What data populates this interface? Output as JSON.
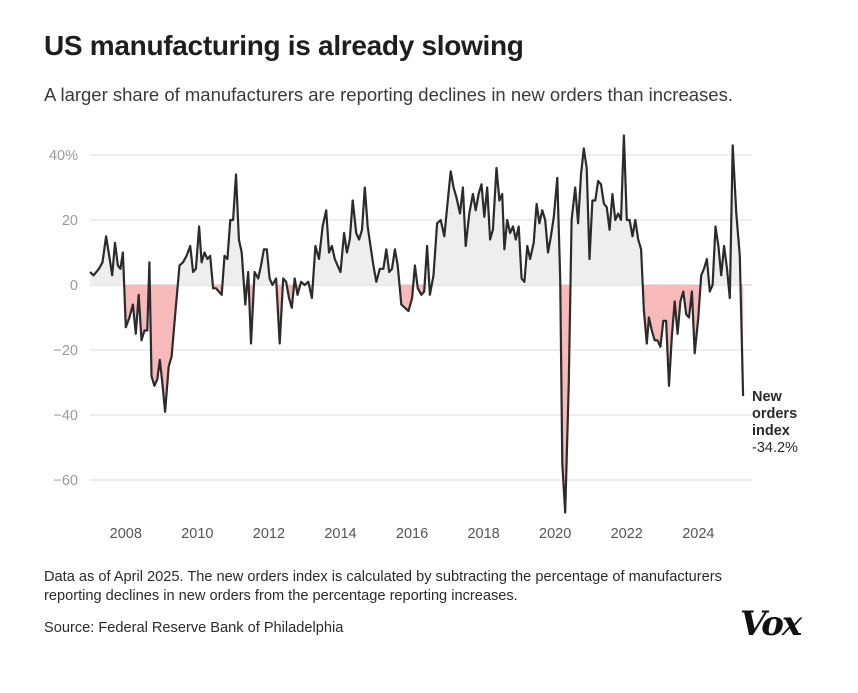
{
  "header": {
    "title": "US manufacturing is already slowing",
    "subtitle": "A larger share of manufacturers are reporting declines in new orders than increases."
  },
  "footer": {
    "note": "Data as of April 2025. The new orders index is calculated by subtracting the percentage of manufacturers reporting declines in new orders from the percentage reporting increases.",
    "source": "Source: Federal Reserve Bank of Philadelphia",
    "logo": "Vox"
  },
  "chart_data": {
    "type": "area",
    "title": "US manufacturing is already slowing",
    "subtitle": "A larger share of manufacturers are reporting declines in new orders than increases.",
    "xlabel": "",
    "ylabel": "",
    "xlim": [
      2007,
      2025.5
    ],
    "ylim": [
      -72,
      46
    ],
    "x_ticks": [
      2008,
      2010,
      2012,
      2014,
      2016,
      2018,
      2020,
      2022,
      2024
    ],
    "x_tick_labels": [
      "2008",
      "2010",
      "2012",
      "2014",
      "2016",
      "2018",
      "2020",
      "2022",
      "2024"
    ],
    "y_ticks": [
      40,
      20,
      0,
      -20,
      -40,
      -60
    ],
    "y_tick_labels": [
      "40%",
      "20",
      "0",
      "−20",
      "−40",
      "−60"
    ],
    "grid": true,
    "colors": {
      "line": "#2b2b2b",
      "positive_fill": "#eeeeee",
      "negative_fill": "#f7b9b9",
      "grid": "#dddddd"
    },
    "annotation": {
      "name_lines": [
        "New",
        "orders",
        "index"
      ],
      "value_label": "-34.2%",
      "x": 2025.25,
      "y": -34.2
    },
    "series": [
      {
        "points": [
          [
            2007.0,
            4
          ],
          [
            2007.1,
            3
          ],
          [
            2007.25,
            5
          ],
          [
            2007.35,
            7
          ],
          [
            2007.45,
            15
          ],
          [
            2007.55,
            8
          ],
          [
            2007.62,
            3
          ],
          [
            2007.7,
            13
          ],
          [
            2007.78,
            6
          ],
          [
            2007.85,
            5
          ],
          [
            2007.92,
            10
          ],
          [
            2008.0,
            -13
          ],
          [
            2008.1,
            -10
          ],
          [
            2008.2,
            -6
          ],
          [
            2008.28,
            -15
          ],
          [
            2008.36,
            -3
          ],
          [
            2008.44,
            -17
          ],
          [
            2008.52,
            -14
          ],
          [
            2008.6,
            -14
          ],
          [
            2008.66,
            7
          ],
          [
            2008.72,
            -28
          ],
          [
            2008.8,
            -31
          ],
          [
            2008.88,
            -29
          ],
          [
            2008.95,
            -23
          ],
          [
            2009.02,
            -30
          ],
          [
            2009.1,
            -39
          ],
          [
            2009.2,
            -25
          ],
          [
            2009.28,
            -22
          ],
          [
            2009.38,
            -9
          ],
          [
            2009.5,
            6
          ],
          [
            2009.6,
            7
          ],
          [
            2009.7,
            9
          ],
          [
            2009.8,
            12
          ],
          [
            2009.88,
            4
          ],
          [
            2009.96,
            5
          ],
          [
            2010.05,
            18
          ],
          [
            2010.12,
            7
          ],
          [
            2010.2,
            10
          ],
          [
            2010.28,
            8
          ],
          [
            2010.36,
            9
          ],
          [
            2010.44,
            -1
          ],
          [
            2010.52,
            -1
          ],
          [
            2010.6,
            -2
          ],
          [
            2010.68,
            -3
          ],
          [
            2010.76,
            9
          ],
          [
            2010.84,
            8
          ],
          [
            2010.92,
            20
          ],
          [
            2011.0,
            20
          ],
          [
            2011.08,
            34
          ],
          [
            2011.16,
            14
          ],
          [
            2011.24,
            10
          ],
          [
            2011.34,
            -6
          ],
          [
            2011.42,
            4
          ],
          [
            2011.5,
            -18
          ],
          [
            2011.6,
            4
          ],
          [
            2011.7,
            2
          ],
          [
            2011.78,
            6
          ],
          [
            2011.86,
            11
          ],
          [
            2011.94,
            11
          ],
          [
            2012.02,
            2
          ],
          [
            2012.1,
            0
          ],
          [
            2012.2,
            2
          ],
          [
            2012.3,
            -18
          ],
          [
            2012.4,
            2
          ],
          [
            2012.48,
            1
          ],
          [
            2012.56,
            -4
          ],
          [
            2012.64,
            -7
          ],
          [
            2012.72,
            2
          ],
          [
            2012.8,
            -3
          ],
          [
            2012.9,
            1
          ],
          [
            2013.0,
            0
          ],
          [
            2013.1,
            1
          ],
          [
            2013.2,
            -4
          ],
          [
            2013.3,
            12
          ],
          [
            2013.4,
            8
          ],
          [
            2013.5,
            18
          ],
          [
            2013.6,
            23
          ],
          [
            2013.68,
            10
          ],
          [
            2013.76,
            12
          ],
          [
            2013.84,
            8
          ],
          [
            2013.92,
            6
          ],
          [
            2014.0,
            4
          ],
          [
            2014.1,
            16
          ],
          [
            2014.18,
            10
          ],
          [
            2014.26,
            14
          ],
          [
            2014.34,
            26
          ],
          [
            2014.44,
            16
          ],
          [
            2014.52,
            14
          ],
          [
            2014.6,
            17
          ],
          [
            2014.68,
            30
          ],
          [
            2014.76,
            18
          ],
          [
            2014.84,
            12
          ],
          [
            2014.92,
            6
          ],
          [
            2015.0,
            1
          ],
          [
            2015.1,
            5
          ],
          [
            2015.2,
            5
          ],
          [
            2015.28,
            11
          ],
          [
            2015.36,
            4
          ],
          [
            2015.44,
            5
          ],
          [
            2015.52,
            11
          ],
          [
            2015.6,
            6
          ],
          [
            2015.7,
            -6
          ],
          [
            2015.8,
            -7
          ],
          [
            2015.9,
            -8
          ],
          [
            2016.0,
            -4
          ],
          [
            2016.08,
            6
          ],
          [
            2016.16,
            -1
          ],
          [
            2016.26,
            -3
          ],
          [
            2016.34,
            -2
          ],
          [
            2016.42,
            12
          ],
          [
            2016.5,
            -3
          ],
          [
            2016.6,
            3
          ],
          [
            2016.7,
            19
          ],
          [
            2016.8,
            20
          ],
          [
            2016.9,
            15
          ],
          [
            2017.0,
            26
          ],
          [
            2017.08,
            35
          ],
          [
            2017.16,
            30
          ],
          [
            2017.24,
            27
          ],
          [
            2017.34,
            22
          ],
          [
            2017.42,
            30
          ],
          [
            2017.5,
            12
          ],
          [
            2017.6,
            22
          ],
          [
            2017.7,
            28
          ],
          [
            2017.78,
            23
          ],
          [
            2017.86,
            28
          ],
          [
            2017.94,
            31
          ],
          [
            2018.02,
            21
          ],
          [
            2018.1,
            30
          ],
          [
            2018.18,
            14
          ],
          [
            2018.26,
            17
          ],
          [
            2018.36,
            36
          ],
          [
            2018.44,
            26
          ],
          [
            2018.52,
            28
          ],
          [
            2018.58,
            11
          ],
          [
            2018.66,
            20
          ],
          [
            2018.74,
            16
          ],
          [
            2018.82,
            18
          ],
          [
            2018.9,
            14
          ],
          [
            2018.98,
            18
          ],
          [
            2019.06,
            2
          ],
          [
            2019.14,
            1
          ],
          [
            2019.22,
            12
          ],
          [
            2019.3,
            8
          ],
          [
            2019.4,
            13
          ],
          [
            2019.48,
            25
          ],
          [
            2019.56,
            19
          ],
          [
            2019.64,
            23
          ],
          [
            2019.72,
            20
          ],
          [
            2019.8,
            10
          ],
          [
            2019.88,
            15
          ],
          [
            2019.96,
            21
          ],
          [
            2020.06,
            33
          ],
          [
            2020.14,
            2
          ],
          [
            2020.2,
            -55
          ],
          [
            2020.28,
            -70
          ],
          [
            2020.38,
            -30
          ],
          [
            2020.46,
            20
          ],
          [
            2020.56,
            30
          ],
          [
            2020.64,
            19
          ],
          [
            2020.72,
            34
          ],
          [
            2020.8,
            42
          ],
          [
            2020.88,
            36
          ],
          [
            2020.96,
            8
          ],
          [
            2021.04,
            26
          ],
          [
            2021.12,
            26
          ],
          [
            2021.2,
            32
          ],
          [
            2021.28,
            31
          ],
          [
            2021.36,
            25
          ],
          [
            2021.44,
            24
          ],
          [
            2021.52,
            17
          ],
          [
            2021.6,
            28
          ],
          [
            2021.68,
            20
          ],
          [
            2021.76,
            22
          ],
          [
            2021.84,
            20
          ],
          [
            2021.92,
            46
          ],
          [
            2022.0,
            20
          ],
          [
            2022.08,
            20
          ],
          [
            2022.16,
            15
          ],
          [
            2022.24,
            20
          ],
          [
            2022.32,
            14
          ],
          [
            2022.4,
            11
          ],
          [
            2022.48,
            -8
          ],
          [
            2022.56,
            -18
          ],
          [
            2022.62,
            -10
          ],
          [
            2022.7,
            -14
          ],
          [
            2022.78,
            -17
          ],
          [
            2022.86,
            -17
          ],
          [
            2022.94,
            -19
          ],
          [
            2023.02,
            -11
          ],
          [
            2023.1,
            -11
          ],
          [
            2023.18,
            -31
          ],
          [
            2023.26,
            -16
          ],
          [
            2023.34,
            -5
          ],
          [
            2023.42,
            -15
          ],
          [
            2023.5,
            -5
          ],
          [
            2023.58,
            -2
          ],
          [
            2023.66,
            -9
          ],
          [
            2023.74,
            -10
          ],
          [
            2023.82,
            -2
          ],
          [
            2023.9,
            -21
          ],
          [
            2024.0,
            -10
          ],
          [
            2024.08,
            3
          ],
          [
            2024.16,
            5
          ],
          [
            2024.24,
            8
          ],
          [
            2024.32,
            -2
          ],
          [
            2024.4,
            0
          ],
          [
            2024.48,
            18
          ],
          [
            2024.56,
            12
          ],
          [
            2024.64,
            3
          ],
          [
            2024.72,
            12
          ],
          [
            2024.8,
            5
          ],
          [
            2024.88,
            -4
          ],
          [
            2024.96,
            43
          ],
          [
            2025.06,
            22
          ],
          [
            2025.16,
            9
          ],
          [
            2025.25,
            -34.2
          ]
        ]
      }
    ]
  }
}
